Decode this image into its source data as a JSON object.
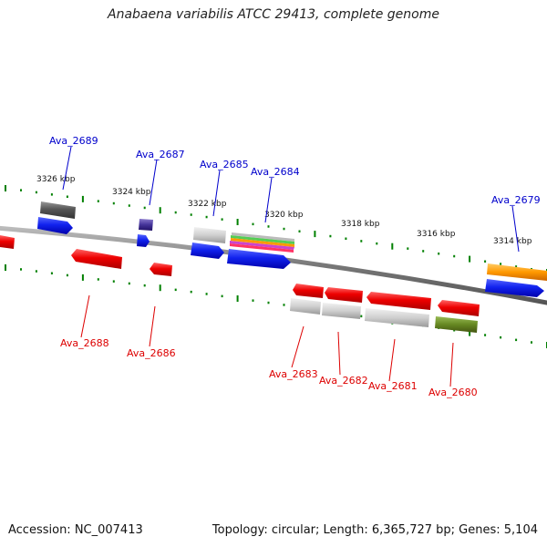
{
  "title": "Anabaena variabilis ATCC 29413, complete genome",
  "footer": {
    "accession": "Accession: NC_007413",
    "topology": "Topology: circular; Length: 6,365,727 bp; Genes: 5,104"
  },
  "colors": {
    "forward_label": "#0000cc",
    "reverse_label": "#dd0000",
    "backbone": "#808080",
    "ticks": "#008000"
  },
  "kbp_labels": [
    "3326 kbp",
    "3324 kbp",
    "3322 kbp",
    "3320 kbp",
    "3318 kbp",
    "3316 kbp",
    "3314 kbp"
  ],
  "forward_genes": [
    "Ava_2689",
    "Ava_2687",
    "Ava_2685",
    "Ava_2684",
    "Ava_2679"
  ],
  "reverse_genes": [
    "Ava_2688",
    "Ava_2686",
    "Ava_2683",
    "Ava_2682",
    "Ava_2681",
    "Ava_2680"
  ]
}
